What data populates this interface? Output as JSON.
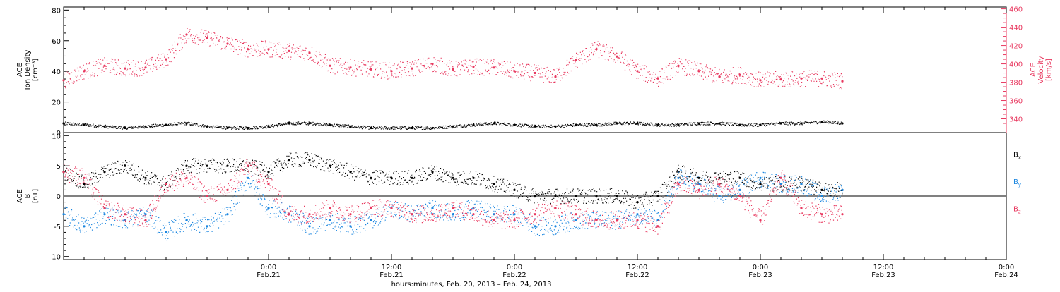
{
  "colors": {
    "black": "#000000",
    "pink": "#e8385f",
    "blue": "#1a86e0"
  },
  "chart_data": [
    {
      "type": "scatter",
      "panel": "top",
      "ylabel_lines": [
        "ACE",
        "Ion Density",
        "[cm⁻³]"
      ],
      "ylim": [
        0,
        82
      ],
      "yticks": [
        "0",
        "20",
        "40",
        "60",
        "80"
      ],
      "y2label_lines": [
        "ACE",
        "Velocity",
        "[km/s]"
      ],
      "y2lim": [
        325,
        462
      ],
      "y2ticks": [
        "340",
        "360",
        "380",
        "400",
        "420",
        "440",
        "460"
      ],
      "xlim": [
        -20,
        72
      ],
      "series": [
        {
          "color": "black",
          "axis": "left",
          "x": [
            -20,
            -18,
            -16,
            -14,
            -12,
            -10,
            -8,
            -6,
            -4,
            -2,
            0,
            2,
            4,
            6,
            8,
            10,
            12,
            14,
            16,
            18,
            20,
            22,
            24,
            26,
            28,
            30,
            32,
            34,
            36,
            38,
            40,
            42,
            44,
            46,
            48,
            50,
            52,
            54,
            56
          ],
          "y": [
            6,
            5,
            4,
            3,
            4,
            5,
            6,
            4,
            3,
            3,
            4,
            6,
            6,
            5,
            4,
            3,
            3,
            3,
            3,
            4,
            5,
            6,
            5,
            4,
            4,
            5,
            5,
            6,
            6,
            5,
            5,
            6,
            6,
            5,
            5,
            6,
            6,
            7,
            6
          ]
        },
        {
          "color": "pink",
          "axis": "right",
          "x": [
            -20,
            -18,
            -16,
            -14,
            -12,
            -10,
            -8,
            -6,
            -4,
            -2,
            0,
            2,
            4,
            6,
            8,
            10,
            12,
            14,
            16,
            18,
            20,
            22,
            24,
            26,
            28,
            30,
            32,
            34,
            36,
            38,
            40,
            42,
            44,
            46,
            48,
            50,
            52,
            54,
            56
          ],
          "y": [
            382,
            392,
            398,
            395,
            396,
            405,
            432,
            428,
            422,
            416,
            416,
            414,
            412,
            398,
            396,
            394,
            392,
            395,
            400,
            394,
            397,
            396,
            392,
            390,
            386,
            404,
            416,
            408,
            392,
            384,
            398,
            392,
            386,
            388,
            382,
            383,
            384,
            384,
            381
          ]
        }
      ]
    },
    {
      "type": "scatter",
      "panel": "bottom",
      "ylabel_lines": [
        "ACE",
        "B",
        "[nT]"
      ],
      "ylim": [
        -10.5,
        10.5
      ],
      "yticks": [
        "-10",
        "-5",
        "0",
        "5",
        "10"
      ],
      "legend": [
        "Bx",
        "By",
        "Bz"
      ],
      "legend_placement": "right",
      "xlim": [
        -20,
        72
      ],
      "xtick_labels": [
        [
          "0:00",
          "Feb.21"
        ],
        [
          "12:00",
          "Feb.21"
        ],
        [
          "0:00",
          "Feb.22"
        ],
        [
          "12:00",
          "Feb.22"
        ],
        [
          "0:00",
          "Feb.23"
        ],
        [
          "12:00",
          "Feb.23"
        ],
        [
          "0:00",
          "Feb.24"
        ]
      ],
      "xlabel": "hours:minutes, Feb. 20, 2013 – Feb. 24, 2013",
      "series": [
        {
          "name": "Bx",
          "color": "black",
          "x": [
            -20,
            -18,
            -16,
            -14,
            -12,
            -10,
            -8,
            -6,
            -4,
            -2,
            0,
            2,
            4,
            6,
            8,
            10,
            12,
            14,
            16,
            18,
            20,
            22,
            24,
            26,
            28,
            30,
            32,
            34,
            36,
            38,
            40,
            42,
            44,
            46,
            48,
            50,
            52,
            54,
            56
          ],
          "y": [
            4,
            2,
            4,
            5,
            3,
            2,
            5,
            5,
            5,
            5,
            4,
            6,
            6,
            5,
            4,
            3,
            3,
            3,
            4,
            3,
            3,
            2,
            1,
            0,
            0,
            0,
            0,
            0,
            -1,
            0,
            4,
            3,
            3,
            3,
            2,
            2,
            2,
            1,
            1
          ]
        },
        {
          "name": "By",
          "color": "blue",
          "x": [
            -20,
            -18,
            -16,
            -14,
            -12,
            -10,
            -8,
            -6,
            -4,
            -2,
            0,
            2,
            4,
            6,
            8,
            10,
            12,
            14,
            16,
            18,
            20,
            22,
            24,
            26,
            28,
            30,
            32,
            34,
            36,
            38,
            40,
            42,
            44,
            46,
            48,
            50,
            52,
            54,
            56
          ],
          "y": [
            -3,
            -5,
            -3,
            -4,
            -3,
            -6,
            -4,
            -5,
            -3,
            3,
            -2,
            -3,
            -5,
            -4,
            -5,
            -4,
            -2,
            -3,
            -2,
            -3,
            -2,
            -3,
            -3,
            -5,
            -5,
            -4,
            -4,
            -4,
            -3,
            -4,
            3,
            2,
            0,
            1,
            3,
            2,
            2,
            0,
            1
          ]
        },
        {
          "name": "Bz",
          "color": "pink",
          "x": [
            -20,
            -18,
            -16,
            -14,
            -12,
            -10,
            -8,
            -6,
            -4,
            -2,
            0,
            2,
            4,
            6,
            8,
            10,
            12,
            14,
            16,
            18,
            20,
            22,
            24,
            26,
            28,
            30,
            32,
            34,
            36,
            38,
            40,
            42,
            44,
            46,
            48,
            50,
            52,
            54,
            56
          ],
          "y": [
            4,
            3,
            -2,
            -3,
            -4,
            2,
            3,
            0,
            1,
            5,
            2,
            -3,
            -3,
            -2,
            -3,
            -2,
            -2,
            -3,
            -3,
            -2,
            -3,
            -4,
            -4,
            -3,
            -2,
            -3,
            -4,
            -4,
            -4,
            -5,
            2,
            1,
            2,
            0,
            -4,
            3,
            -2,
            -3,
            -3
          ]
        }
      ]
    }
  ]
}
